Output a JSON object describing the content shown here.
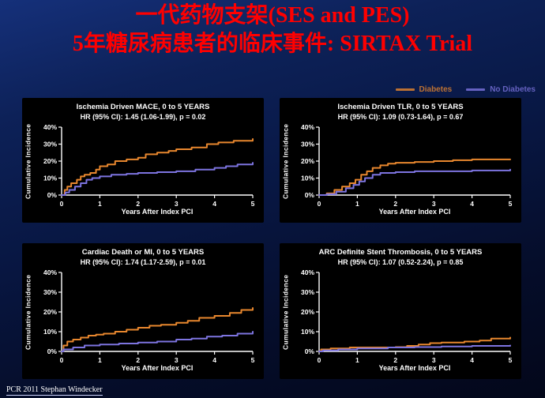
{
  "slide": {
    "title_line1": "一代药物支架(SES and PES)",
    "title_line2": "5年糖尿病患者的临床事件: SIRTAX Trial",
    "footer": "PCR 2011 Stephan Windecker"
  },
  "colors": {
    "slide_title": "#FF0000",
    "diabetes": "#E8872E",
    "no_diabetes": "#7D74E0",
    "axis": "#FFFFFF",
    "panel_bg": "#000000"
  },
  "legend": [
    {
      "label": "Diabetes",
      "color": "#E8872E"
    },
    {
      "label": "No Diabetes",
      "color": "#7D74E0"
    }
  ],
  "chart_data": [
    {
      "type": "line",
      "title": "Ischemia Driven MACE, 0 to 5 YEARS",
      "hr_text": "HR (95% CI): 1.45 (1.06-1.99), p = 0.02",
      "xlabel": "Years After Index PCI",
      "ylabel": "Cumulative Incidence",
      "xlim": [
        0,
        5
      ],
      "ylim": [
        0,
        40
      ],
      "xticks": [
        0,
        1,
        2,
        3,
        4,
        5
      ],
      "yticks": [
        "0%",
        "10%",
        "20%",
        "30%",
        "40%"
      ],
      "legend_position": "top-right-of-slide",
      "grid": false,
      "series": [
        {
          "name": "Diabetes",
          "color": "#E8872E",
          "x": [
            0,
            0.08,
            0.15,
            0.25,
            0.4,
            0.5,
            0.6,
            0.75,
            0.9,
            1.0,
            1.2,
            1.4,
            1.7,
            2.0,
            2.2,
            2.5,
            2.8,
            3.0,
            3.4,
            3.8,
            4.1,
            4.5,
            5.0
          ],
          "y": [
            0,
            3,
            5,
            7,
            9,
            11,
            12,
            13,
            15,
            17,
            18,
            20,
            21,
            22,
            24,
            25,
            26,
            27,
            28,
            30,
            31,
            32,
            33
          ]
        },
        {
          "name": "No Diabetes",
          "color": "#7D74E0",
          "x": [
            0,
            0.1,
            0.2,
            0.35,
            0.5,
            0.65,
            0.8,
            1.0,
            1.3,
            1.7,
            2.0,
            2.5,
            3.0,
            3.5,
            4.0,
            4.3,
            4.6,
            5.0
          ],
          "y": [
            0,
            1.5,
            3,
            5,
            7,
            9,
            10,
            11,
            12,
            12.5,
            13,
            13.5,
            14,
            15,
            16,
            17,
            18,
            19
          ]
        }
      ]
    },
    {
      "type": "line",
      "title": "Ischemia Driven TLR, 0 to 5 YEARS",
      "hr_text": "HR (95% CI): 1.09 (0.73-1.64), p = 0.67",
      "xlabel": "Years After Index PCI",
      "ylabel": "Cumulative Incidence",
      "xlim": [
        0,
        5
      ],
      "ylim": [
        0,
        40
      ],
      "xticks": [
        0,
        1,
        2,
        3,
        4,
        5
      ],
      "yticks": [
        "0%",
        "10%",
        "20%",
        "30%",
        "40%"
      ],
      "grid": false,
      "series": [
        {
          "name": "Diabetes",
          "color": "#E8872E",
          "x": [
            0,
            0.2,
            0.4,
            0.6,
            0.8,
            0.95,
            1.1,
            1.25,
            1.4,
            1.6,
            1.8,
            2.0,
            2.5,
            3.0,
            3.5,
            4.0,
            5.0
          ],
          "y": [
            0,
            1,
            3,
            5,
            7,
            9,
            12,
            14,
            16,
            17.5,
            18.5,
            19,
            19.5,
            20,
            20.5,
            21,
            21
          ]
        },
        {
          "name": "No Diabetes",
          "color": "#7D74E0",
          "x": [
            0,
            0.2,
            0.45,
            0.7,
            0.9,
            1.05,
            1.2,
            1.4,
            1.6,
            2.0,
            2.5,
            3.0,
            4.0,
            5.0
          ],
          "y": [
            0,
            0.5,
            2,
            4,
            6,
            8,
            10,
            12,
            13,
            13.5,
            14,
            14,
            14.5,
            15
          ]
        }
      ]
    },
    {
      "type": "line",
      "title": "Cardiac Death or MI, 0 to 5 YEARS",
      "hr_text": "HR (95% CI): 1.74 (1.17-2.59), p = 0.01",
      "xlabel": "Years After Index PCI",
      "ylabel": "Cumulative Incidence",
      "xlim": [
        0,
        5
      ],
      "ylim": [
        0,
        40
      ],
      "xticks": [
        0,
        1,
        2,
        3,
        4,
        5
      ],
      "yticks": [
        "0%",
        "10%",
        "20%",
        "30%",
        "40%"
      ],
      "grid": false,
      "series": [
        {
          "name": "Diabetes",
          "color": "#E8872E",
          "x": [
            0,
            0.05,
            0.15,
            0.3,
            0.5,
            0.7,
            0.9,
            1.1,
            1.4,
            1.7,
            2.0,
            2.3,
            2.6,
            3.0,
            3.3,
            3.6,
            4.0,
            4.4,
            4.7,
            5.0
          ],
          "y": [
            0,
            3,
            5,
            6,
            7,
            8,
            8.5,
            9,
            10,
            11,
            12,
            13,
            13.5,
            14.5,
            15.5,
            17,
            18,
            19.5,
            21,
            22
          ]
        },
        {
          "name": "No Diabetes",
          "color": "#7D74E0",
          "x": [
            0,
            0.05,
            0.3,
            0.6,
            1.0,
            1.5,
            2.0,
            2.5,
            3.0,
            3.4,
            3.8,
            4.2,
            4.6,
            5.0
          ],
          "y": [
            0,
            1,
            2,
            3,
            3.5,
            4,
            4.5,
            5,
            6,
            6.5,
            7.5,
            8,
            9,
            10
          ]
        }
      ]
    },
    {
      "type": "line",
      "title": "ARC Definite Stent Thrombosis, 0 to 5 YEARS",
      "hr_text": "HR (95% CI): 1.07 (0.52-2.24), p = 0.85",
      "xlabel": "Years After Index PCI",
      "ylabel": "Cumulative Incidence",
      "xlim": [
        0,
        5
      ],
      "ylim": [
        0,
        40
      ],
      "xticks": [
        0,
        1,
        2,
        3,
        4,
        5
      ],
      "yticks": [
        "0%",
        "10%",
        "20%",
        "30%",
        "40%"
      ],
      "grid": false,
      "series": [
        {
          "name": "Diabetes",
          "color": "#E8872E",
          "x": [
            0,
            0.05,
            0.3,
            0.8,
            1.5,
            2.0,
            2.3,
            2.6,
            2.9,
            3.2,
            3.8,
            4.2,
            4.5,
            5.0
          ],
          "y": [
            0,
            1,
            1.5,
            2,
            2,
            2.2,
            2.8,
            3.5,
            4.2,
            4.5,
            5,
            5.5,
            6.5,
            7
          ]
        },
        {
          "name": "No Diabetes",
          "color": "#7D74E0",
          "x": [
            0,
            0.1,
            0.5,
            1.0,
            1.8,
            2.5,
            3.2,
            4.0,
            5.0
          ],
          "y": [
            0,
            0.5,
            1,
            1.5,
            2,
            2.2,
            2.5,
            2.8,
            3
          ]
        }
      ]
    }
  ]
}
